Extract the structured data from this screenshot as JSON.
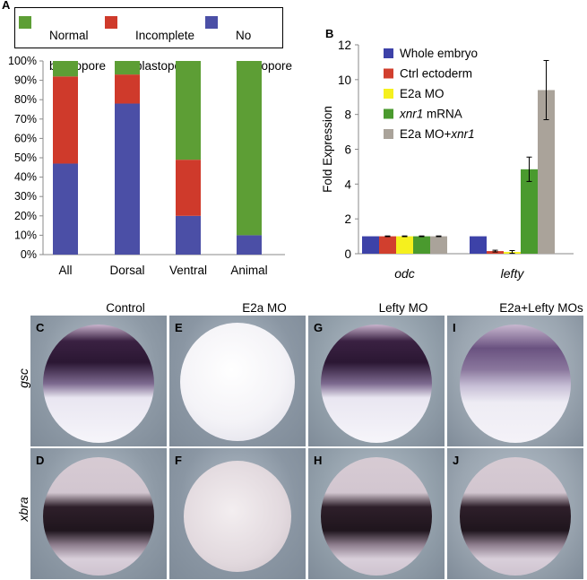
{
  "panel_letters": {
    "a": "A",
    "b": "B"
  },
  "legend_a": [
    {
      "label_line1": "Normal",
      "label_line2": "blastopore",
      "color": "#5d9e35"
    },
    {
      "label_line1": "Incomplete",
      "label_line2": "blastopore",
      "color": "#cf3a2b"
    },
    {
      "label_line1": "No",
      "label_line2": "blastopore",
      "color": "#4b4fa6"
    }
  ],
  "legend_b": [
    {
      "label": "Whole embryo",
      "color": "#3d42a8"
    },
    {
      "label": "Ctrl ectoderm",
      "color": "#d13f2e"
    },
    {
      "label": "E2a MO",
      "color": "#f5f01e"
    },
    {
      "label_italic": "xnr1",
      "label_rest": " mRNA",
      "color": "#4a9a2e"
    },
    {
      "label_prefix": "E2a MO+",
      "label_italic": "xnr1",
      "color": "#aaa39a"
    }
  ],
  "chart_data": [
    {
      "type": "bar",
      "stacked": true,
      "categories": [
        "All",
        "Dorsal",
        "Ventral",
        "Animal"
      ],
      "yticks": [
        "0%",
        "10%",
        "20%",
        "30%",
        "40%",
        "50%",
        "60%",
        "70%",
        "80%",
        "90%",
        "100%"
      ],
      "ylim": [
        0,
        100
      ],
      "series": [
        {
          "name": "No blastopore",
          "values": [
            47,
            78,
            20,
            10
          ]
        },
        {
          "name": "Incomplete blastopore",
          "values": [
            45,
            15,
            29,
            0
          ]
        },
        {
          "name": "Normal blastopore",
          "values": [
            8,
            7,
            51,
            90
          ]
        }
      ]
    },
    {
      "type": "bar",
      "categories": [
        "odc",
        "lefty"
      ],
      "ylabel": "Fold Expression",
      "yticks": [
        "0",
        "2",
        "4",
        "6",
        "8",
        "10",
        "12"
      ],
      "ylim": [
        0,
        12
      ],
      "series": [
        {
          "name": "Whole embryo",
          "values": [
            1.0,
            1.0
          ],
          "errors": [
            0,
            0
          ]
        },
        {
          "name": "Ctrl ectoderm",
          "values": [
            1.0,
            0.15
          ],
          "errors": [
            0.02,
            0.05
          ]
        },
        {
          "name": "E2a MO",
          "values": [
            1.0,
            0.1
          ],
          "errors": [
            0.02,
            0.08
          ]
        },
        {
          "name": "xnr1 mRNA",
          "values": [
            1.0,
            4.85
          ],
          "errors": [
            0.02,
            0.7
          ]
        },
        {
          "name": "E2a MO+xnr1",
          "values": [
            1.0,
            9.4
          ],
          "errors": [
            0.02,
            1.7
          ]
        }
      ]
    }
  ],
  "photo_columns": [
    "Control",
    "E2a MO",
    "Lefty MO",
    "E2a+Lefty MOs"
  ],
  "photo_rows": [
    "gsc",
    "xbra"
  ],
  "photo_letters": [
    [
      "C",
      "E",
      "G",
      "I"
    ],
    [
      "D",
      "F",
      "H",
      "J"
    ]
  ]
}
